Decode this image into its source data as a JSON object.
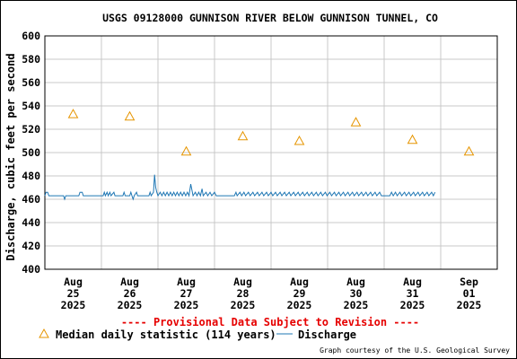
{
  "chart_data": {
    "type": "line",
    "title": "USGS 09128000 GUNNISON RIVER BELOW GUNNISON TUNNEL, CO",
    "ylabel": "Discharge, cubic feet per second",
    "ylim": [
      400,
      600
    ],
    "yticks": [
      400,
      420,
      440,
      460,
      480,
      500,
      520,
      540,
      560,
      580,
      600
    ],
    "xlim": [
      0,
      8
    ],
    "xticks": [
      {
        "x": 0.5,
        "lines": [
          "Aug",
          "25",
          "2025"
        ]
      },
      {
        "x": 1.5,
        "lines": [
          "Aug",
          "26",
          "2025"
        ]
      },
      {
        "x": 2.5,
        "lines": [
          "Aug",
          "27",
          "2025"
        ]
      },
      {
        "x": 3.5,
        "lines": [
          "Aug",
          "28",
          "2025"
        ]
      },
      {
        "x": 4.5,
        "lines": [
          "Aug",
          "29",
          "2025"
        ]
      },
      {
        "x": 5.5,
        "lines": [
          "Aug",
          "30",
          "2025"
        ]
      },
      {
        "x": 6.5,
        "lines": [
          "Aug",
          "31",
          "2025"
        ]
      },
      {
        "x": 7.5,
        "lines": [
          "Sep",
          "01",
          "2025"
        ]
      }
    ],
    "grid": true,
    "provisional_note": "---- Provisional Data Subject to Revision ----",
    "credit": "Graph courtesy of the U.S. Geological Survey",
    "series": [
      {
        "name": "Discharge",
        "color": "#1f77b4",
        "base": 463,
        "x_start": 0.0,
        "x_end": 6.9,
        "points": [
          [
            0.0,
            463
          ],
          [
            0.02,
            466
          ],
          [
            0.05,
            466
          ],
          [
            0.07,
            463
          ],
          [
            0.33,
            463
          ],
          [
            0.35,
            460
          ],
          [
            0.37,
            463
          ],
          [
            0.6,
            463
          ],
          [
            0.62,
            466
          ],
          [
            0.66,
            466
          ],
          [
            0.68,
            463
          ],
          [
            1.03,
            463
          ],
          [
            1.05,
            466
          ],
          [
            1.07,
            463
          ],
          [
            1.1,
            466
          ],
          [
            1.12,
            463
          ],
          [
            1.15,
            466
          ],
          [
            1.17,
            463
          ],
          [
            1.22,
            466
          ],
          [
            1.24,
            463
          ],
          [
            1.38,
            463
          ],
          [
            1.4,
            466
          ],
          [
            1.42,
            463
          ],
          [
            1.52,
            466
          ],
          [
            1.54,
            463
          ],
          [
            1.56,
            460
          ],
          [
            1.58,
            463
          ],
          [
            1.62,
            466
          ],
          [
            1.64,
            463
          ],
          [
            1.84,
            463
          ],
          [
            1.86,
            466
          ],
          [
            1.88,
            463
          ],
          [
            1.92,
            466
          ],
          [
            1.94,
            481
          ],
          [
            1.96,
            470
          ],
          [
            1.98,
            466
          ],
          [
            2.0,
            463
          ],
          [
            2.04,
            466
          ],
          [
            2.07,
            463
          ],
          [
            2.1,
            466
          ],
          [
            2.13,
            463
          ],
          [
            2.16,
            466
          ],
          [
            2.19,
            463
          ],
          [
            2.22,
            466
          ],
          [
            2.25,
            463
          ],
          [
            2.28,
            466
          ],
          [
            2.31,
            463
          ],
          [
            2.34,
            466
          ],
          [
            2.37,
            463
          ],
          [
            2.4,
            466
          ],
          [
            2.43,
            463
          ],
          [
            2.46,
            466
          ],
          [
            2.49,
            463
          ],
          [
            2.52,
            466
          ],
          [
            2.55,
            463
          ],
          [
            2.58,
            473
          ],
          [
            2.6,
            468
          ],
          [
            2.62,
            463
          ],
          [
            2.66,
            466
          ],
          [
            2.69,
            463
          ],
          [
            2.72,
            466
          ],
          [
            2.75,
            463
          ],
          [
            2.78,
            469
          ],
          [
            2.8,
            463
          ],
          [
            2.85,
            466
          ],
          [
            2.88,
            463
          ],
          [
            2.92,
            466
          ],
          [
            2.95,
            463
          ],
          [
            3.0,
            466
          ],
          [
            3.03,
            463
          ],
          [
            3.35,
            463
          ],
          [
            3.38,
            466
          ],
          [
            3.4,
            463
          ],
          [
            3.45,
            466
          ],
          [
            3.48,
            463
          ],
          [
            3.52,
            466
          ],
          [
            3.55,
            463
          ],
          [
            3.6,
            466
          ],
          [
            3.63,
            463
          ],
          [
            3.68,
            466
          ],
          [
            3.71,
            463
          ],
          [
            3.76,
            466
          ],
          [
            3.79,
            463
          ],
          [
            3.84,
            466
          ],
          [
            3.87,
            463
          ],
          [
            3.92,
            466
          ],
          [
            3.95,
            463
          ],
          [
            4.0,
            466
          ],
          [
            4.03,
            463
          ],
          [
            4.08,
            466
          ],
          [
            4.11,
            463
          ],
          [
            4.16,
            466
          ],
          [
            4.19,
            463
          ],
          [
            4.24,
            466
          ],
          [
            4.27,
            463
          ],
          [
            4.32,
            466
          ],
          [
            4.35,
            463
          ],
          [
            4.4,
            466
          ],
          [
            4.43,
            463
          ],
          [
            4.48,
            466
          ],
          [
            4.51,
            463
          ],
          [
            4.56,
            466
          ],
          [
            4.59,
            463
          ],
          [
            4.64,
            466
          ],
          [
            4.67,
            463
          ],
          [
            4.72,
            466
          ],
          [
            4.75,
            463
          ],
          [
            4.8,
            466
          ],
          [
            4.83,
            463
          ],
          [
            4.88,
            466
          ],
          [
            4.91,
            463
          ],
          [
            4.96,
            466
          ],
          [
            4.99,
            463
          ],
          [
            5.04,
            466
          ],
          [
            5.07,
            463
          ],
          [
            5.12,
            466
          ],
          [
            5.15,
            463
          ],
          [
            5.2,
            466
          ],
          [
            5.23,
            463
          ],
          [
            5.28,
            466
          ],
          [
            5.31,
            463
          ],
          [
            5.36,
            466
          ],
          [
            5.39,
            463
          ],
          [
            5.44,
            466
          ],
          [
            5.47,
            463
          ],
          [
            5.52,
            466
          ],
          [
            5.55,
            463
          ],
          [
            5.6,
            466
          ],
          [
            5.63,
            463
          ],
          [
            5.68,
            466
          ],
          [
            5.71,
            463
          ],
          [
            5.76,
            466
          ],
          [
            5.79,
            463
          ],
          [
            5.84,
            466
          ],
          [
            5.87,
            463
          ],
          [
            5.92,
            466
          ],
          [
            5.95,
            463
          ],
          [
            6.1,
            463
          ],
          [
            6.13,
            466
          ],
          [
            6.16,
            463
          ],
          [
            6.2,
            466
          ],
          [
            6.23,
            463
          ],
          [
            6.28,
            466
          ],
          [
            6.31,
            463
          ],
          [
            6.36,
            466
          ],
          [
            6.39,
            463
          ],
          [
            6.44,
            466
          ],
          [
            6.47,
            463
          ],
          [
            6.52,
            466
          ],
          [
            6.55,
            463
          ],
          [
            6.6,
            466
          ],
          [
            6.63,
            463
          ],
          [
            6.68,
            466
          ],
          [
            6.71,
            463
          ],
          [
            6.76,
            466
          ],
          [
            6.79,
            463
          ],
          [
            6.84,
            466
          ],
          [
            6.87,
            463
          ],
          [
            6.9,
            466
          ]
        ]
      },
      {
        "name": "Median daily statistic (114 years)",
        "marker": "triangle",
        "color": "#e69500",
        "x": [
          0.5,
          1.5,
          2.5,
          3.5,
          4.5,
          5.5,
          6.5,
          7.5
        ],
        "values": [
          533,
          531,
          501,
          514,
          510,
          526,
          511,
          501
        ]
      }
    ]
  }
}
